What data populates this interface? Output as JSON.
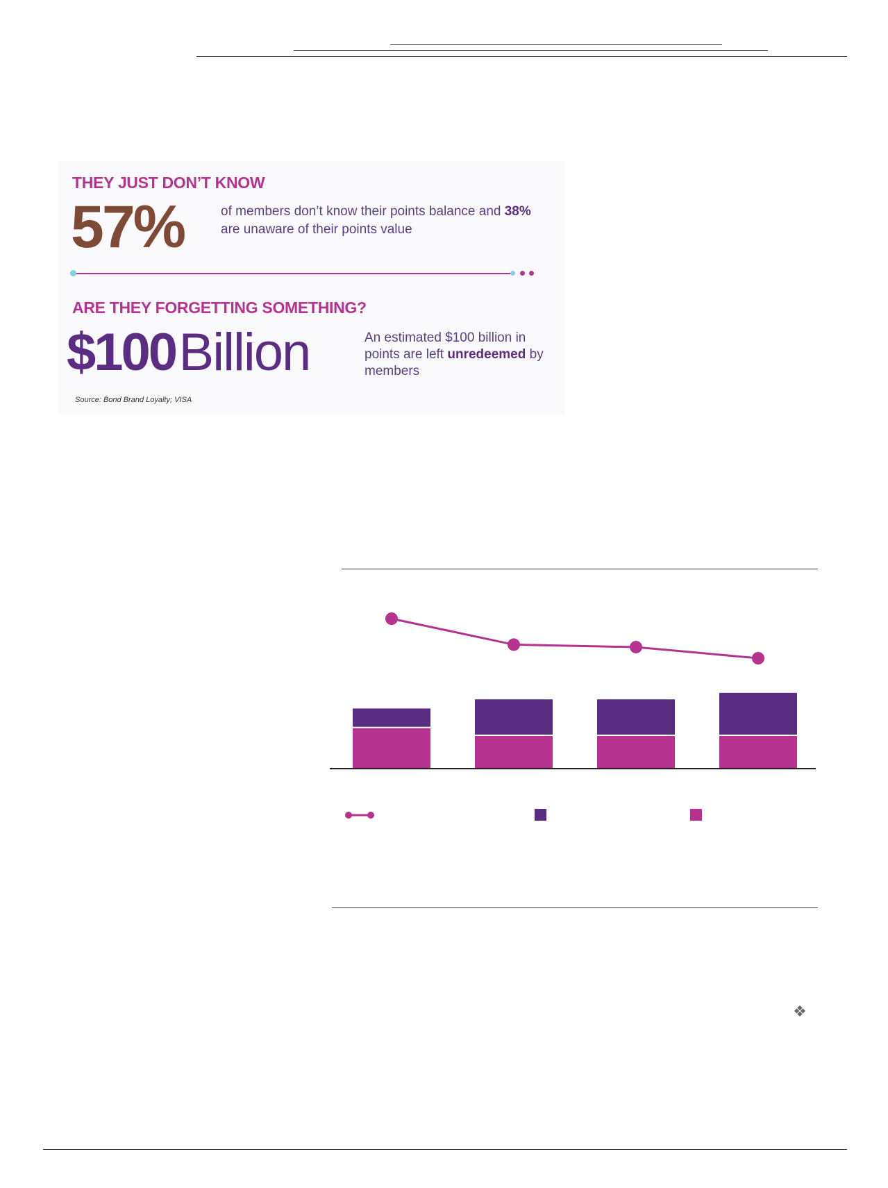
{
  "infographic": {
    "heading_1": "THEY JUST DON’T KNOW",
    "big_percent": "57%",
    "percent_text_a": "of members don’t know their points balance and",
    "percent_text_bold": "38%",
    "percent_text_b": "are unaware of their points value",
    "heading_2": "ARE THEY FORGETTING SOMETHING?",
    "big_amount_bold": "$100",
    "big_amount_light": "Billion",
    "amount_text_a": "An estimated $100 billion in points are left",
    "amount_text_bold": "unredeemed",
    "amount_text_b": "by members",
    "source": "Source: Bond Brand Loyalty; VISA",
    "colors": {
      "heading": "#b5328f",
      "percent": "#7d4a37",
      "amount": "#5a2d82",
      "accent_dot": "#7fd0e8"
    }
  },
  "chart_data": {
    "type": "bar",
    "categories": [
      "",
      "",
      "",
      ""
    ],
    "series": [
      {
        "kind": "line",
        "values": [
          100,
          79,
          77,
          68
        ],
        "color": "#b5328f"
      },
      {
        "kind": "bar-stack-top",
        "values": [
          14,
          27,
          27,
          32
        ],
        "color": "#5a2d82"
      },
      {
        "kind": "bar-stack-bottom",
        "values": [
          31,
          25,
          25,
          25
        ],
        "color": "#b5328f"
      }
    ],
    "legend_placement": "bottom",
    "grid": false
  },
  "footer": {
    "icon": "logo-glyph-icon"
  }
}
